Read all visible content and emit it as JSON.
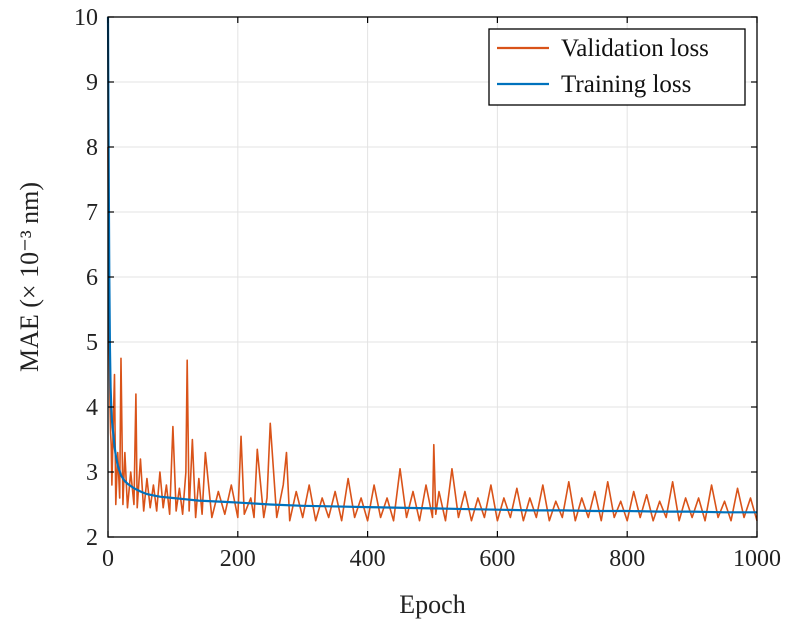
{
  "chart_data": {
    "type": "line",
    "title": "",
    "xlabel": "Epoch",
    "ylabel": "MAE (× 10⁻³ nm)",
    "xlim": [
      0,
      1000
    ],
    "ylim": [
      2,
      10
    ],
    "xticks": [
      0,
      200,
      400,
      600,
      800,
      1000
    ],
    "yticks": [
      2,
      3,
      4,
      5,
      6,
      7,
      8,
      9,
      10
    ],
    "grid": true,
    "legend_position": "top-right",
    "series": [
      {
        "name": "Validation loss",
        "color": "#D95319",
        "x": [
          0,
          1,
          2,
          3,
          4,
          5,
          6,
          8,
          10,
          12,
          15,
          18,
          20,
          23,
          26,
          30,
          35,
          40,
          43,
          45,
          50,
          55,
          60,
          65,
          70,
          75,
          80,
          85,
          90,
          95,
          100,
          105,
          110,
          115,
          120,
          122,
          125,
          130,
          135,
          140,
          145,
          150,
          160,
          170,
          180,
          190,
          200,
          205,
          210,
          220,
          225,
          230,
          240,
          245,
          250,
          260,
          270,
          275,
          280,
          290,
          300,
          310,
          320,
          330,
          340,
          350,
          360,
          370,
          380,
          390,
          400,
          410,
          420,
          430,
          440,
          450,
          460,
          470,
          480,
          490,
          500,
          502,
          505,
          510,
          520,
          530,
          540,
          550,
          560,
          570,
          580,
          590,
          600,
          610,
          620,
          630,
          640,
          650,
          660,
          670,
          680,
          690,
          700,
          710,
          720,
          730,
          740,
          750,
          760,
          770,
          780,
          790,
          800,
          810,
          820,
          830,
          840,
          850,
          860,
          870,
          880,
          890,
          900,
          910,
          920,
          930,
          940,
          950,
          960,
          970,
          980,
          990,
          1000
        ],
        "values": [
          8.0,
          6.2,
          5.0,
          4.1,
          3.6,
          3.4,
          2.8,
          3.7,
          4.5,
          2.5,
          3.3,
          2.6,
          4.75,
          2.5,
          3.3,
          2.45,
          3.0,
          2.5,
          4.2,
          2.45,
          3.2,
          2.4,
          2.9,
          2.45,
          2.8,
          2.4,
          3.0,
          2.45,
          2.8,
          2.35,
          3.7,
          2.4,
          2.75,
          2.35,
          3.0,
          4.72,
          2.4,
          3.5,
          2.3,
          2.9,
          2.35,
          3.3,
          2.3,
          2.7,
          2.35,
          2.8,
          2.3,
          3.55,
          2.35,
          2.6,
          2.3,
          3.35,
          2.3,
          2.6,
          3.75,
          2.3,
          2.8,
          3.3,
          2.25,
          2.7,
          2.3,
          2.8,
          2.25,
          2.6,
          2.3,
          2.7,
          2.25,
          2.9,
          2.3,
          2.6,
          2.25,
          2.8,
          2.3,
          2.6,
          2.25,
          3.05,
          2.3,
          2.7,
          2.25,
          2.8,
          2.3,
          3.42,
          2.35,
          2.7,
          2.25,
          3.05,
          2.3,
          2.7,
          2.25,
          2.6,
          2.3,
          2.8,
          2.25,
          2.6,
          2.3,
          2.75,
          2.25,
          2.6,
          2.3,
          2.8,
          2.25,
          2.55,
          2.3,
          2.85,
          2.25,
          2.6,
          2.3,
          2.7,
          2.25,
          2.85,
          2.3,
          2.55,
          2.25,
          2.7,
          2.3,
          2.65,
          2.25,
          2.55,
          2.3,
          2.85,
          2.25,
          2.6,
          2.3,
          2.6,
          2.25,
          2.8,
          2.3,
          2.55,
          2.25,
          2.75,
          2.3,
          2.6,
          2.25
        ]
      },
      {
        "name": "Training loss",
        "color": "#0072BD",
        "x": [
          0,
          1,
          2,
          3,
          4,
          5,
          6,
          8,
          10,
          12,
          15,
          20,
          25,
          30,
          40,
          50,
          60,
          70,
          80,
          100,
          120,
          140,
          160,
          180,
          200,
          250,
          300,
          350,
          400,
          450,
          500,
          550,
          600,
          650,
          700,
          750,
          800,
          850,
          900,
          950,
          1000
        ],
        "values": [
          10.0,
          7.8,
          6.0,
          4.9,
          4.3,
          4.0,
          3.8,
          3.6,
          3.4,
          3.25,
          3.1,
          2.95,
          2.87,
          2.82,
          2.75,
          2.7,
          2.66,
          2.64,
          2.62,
          2.6,
          2.58,
          2.56,
          2.55,
          2.54,
          2.53,
          2.5,
          2.48,
          2.47,
          2.46,
          2.45,
          2.44,
          2.43,
          2.42,
          2.41,
          2.41,
          2.4,
          2.4,
          2.39,
          2.39,
          2.38,
          2.38
        ]
      }
    ]
  }
}
